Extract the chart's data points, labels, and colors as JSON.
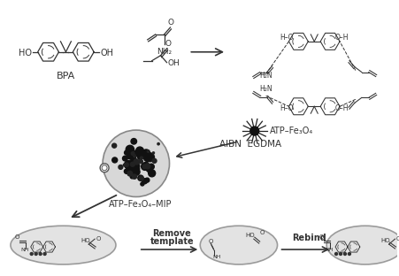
{
  "bg_color": "#ffffff",
  "fig_width": 4.52,
  "fig_height": 3.12,
  "dpi": 100,
  "bpa_label": "BPA",
  "mip_label": "ATP–Fe₃O₄–MIP",
  "atp_fe3o4_label": "ATP–Fe₃O₄",
  "aibn_label": "AIBN  EGDMA",
  "remove_label": "Remove\ntemplate",
  "rebind_label": "Rebind",
  "subscript3": "₃",
  "subscript4": "₄"
}
